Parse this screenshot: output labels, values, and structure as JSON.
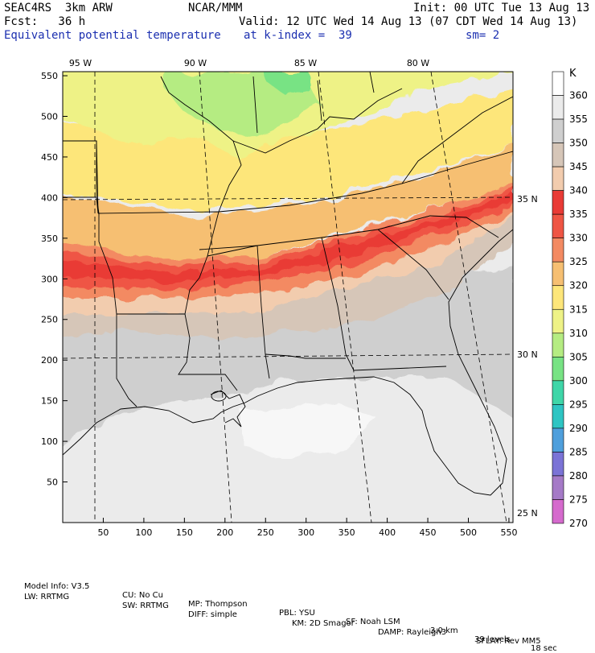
{
  "header": {
    "model": "SEAC4RS  3km ARW",
    "agency": "NCAR/MMM",
    "init": "Init: 00 UTC Tue 13 Aug 13",
    "fcst": "Fcst:   36 h",
    "valid": "Valid: 12 UTC Wed 14 Aug 13 (07 CDT Wed 14 Aug 13)",
    "field": "Equivalent potential temperature",
    "level": "at k-index =  39",
    "smooth": "sm= 2"
  },
  "axes": {
    "x_ticks": [
      "50",
      "100",
      "150",
      "200",
      "250",
      "300",
      "350",
      "400",
      "450",
      "500",
      "550"
    ],
    "y_ticks": [
      "50",
      "100",
      "150",
      "200",
      "250",
      "300",
      "350",
      "400",
      "450",
      "500",
      "550"
    ],
    "lon_labels": [
      "95 W",
      "90 W",
      "85 W",
      "80 W"
    ],
    "lat_labels": [
      "35 N",
      "30 N",
      "25 N"
    ]
  },
  "colorbar": {
    "unit": "K",
    "levels": [
      "360",
      "355",
      "350",
      "345",
      "340",
      "335",
      "330",
      "325",
      "320",
      "315",
      "310",
      "305",
      "300",
      "295",
      "290",
      "285",
      "280",
      "275",
      "270"
    ],
    "colors": [
      "#ffffff",
      "#ebebeb",
      "#cfcfcf",
      "#d6c6b8",
      "#f2ccae",
      "#e93b36",
      "#ef5544",
      "#f38a62",
      "#f6bf72",
      "#fde67a",
      "#eef286",
      "#b5ec82",
      "#78e384",
      "#3fd6a8",
      "#2ec5c3",
      "#4f9fdc",
      "#7b73d6",
      "#a57ac7",
      "#d56acd"
    ]
  },
  "footer": {
    "line1": [
      "Model Info: V3.5",
      "CU: No Cu",
      "MP: Thompson",
      "PBL: YSU",
      "SF: Noah LSM",
      "3.0 km",
      "39 levels",
      "18 sec"
    ],
    "line2": [
      "LW: RRTMG",
      "SW: RRTMG",
      "DIFF: simple",
      "KM: 2D Smagor",
      "DAMP: Rayleigh3",
      "SFLAY: Rev MM5"
    ]
  }
}
